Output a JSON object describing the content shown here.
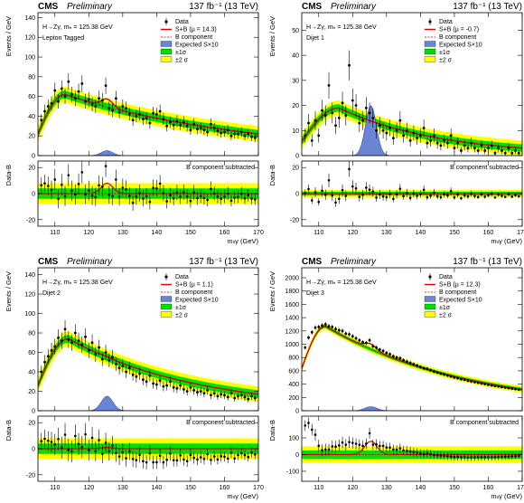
{
  "chart_data": [
    {
      "type": "scatter",
      "panel": "Lepton Tagged",
      "header": {
        "experiment": "CMS",
        "status": "Preliminary",
        "lumi": "137 fb⁻¹ (13 TeV)"
      },
      "process": "H→Zγ, mₕ = 125.38 GeV",
      "category": "Lepton Tagged",
      "ylabel": "Events / GeV",
      "ratio_ylabel": "Data-B",
      "xlabel": "mₗₗγ (GeV)",
      "ratio_note": "B component subtracted",
      "legend": [
        "Data",
        "S+B (μ = 14.3)",
        "B component",
        "Expected S×10",
        "±1σ",
        "±2 σ"
      ],
      "xlim": [
        105,
        170
      ],
      "ylim": [
        0,
        145
      ],
      "yticks": [
        0,
        20,
        40,
        60,
        80,
        100,
        120,
        140
      ],
      "ratio_ylim": [
        -25,
        25
      ],
      "ratio_yticks": [
        -20,
        0,
        20
      ],
      "bkg": {
        "peak_x": 113,
        "peak_y": 62,
        "end_y": 22,
        "rise": 0.35
      },
      "band1": 4,
      "band2": 8,
      "signal": {
        "mu": 125.38,
        "sigma": 1.7,
        "height": 5
      },
      "splusb_bump": 8,
      "ratio_bump": 8,
      "data": [
        [
          106,
          36
        ],
        [
          107,
          45
        ],
        [
          108,
          50
        ],
        [
          109,
          53
        ],
        [
          110,
          66
        ],
        [
          111,
          55
        ],
        [
          112,
          68
        ],
        [
          113,
          60
        ],
        [
          114,
          75
        ],
        [
          115,
          62
        ],
        [
          116,
          58
        ],
        [
          117,
          65
        ],
        [
          118,
          73
        ],
        [
          119,
          55
        ],
        [
          120,
          57
        ],
        [
          121,
          52
        ],
        [
          122,
          50
        ],
        [
          123,
          58
        ],
        [
          124,
          56
        ],
        [
          125,
          71
        ],
        [
          126,
          48
        ],
        [
          127,
          46
        ],
        [
          128,
          58
        ],
        [
          129,
          44
        ],
        [
          130,
          50
        ],
        [
          131,
          48
        ],
        [
          132,
          42
        ],
        [
          133,
          36
        ],
        [
          134,
          40
        ],
        [
          135,
          42
        ],
        [
          136,
          37
        ],
        [
          137,
          38
        ],
        [
          138,
          33
        ],
        [
          139,
          43
        ],
        [
          140,
          42
        ],
        [
          141,
          45
        ],
        [
          142,
          37
        ],
        [
          143,
          30
        ],
        [
          144,
          34
        ],
        [
          145,
          31
        ],
        [
          146,
          35
        ],
        [
          147,
          31
        ],
        [
          148,
          34
        ],
        [
          149,
          30
        ],
        [
          150,
          26
        ],
        [
          151,
          32
        ],
        [
          152,
          27
        ],
        [
          153,
          28
        ],
        [
          154,
          26
        ],
        [
          155,
          24
        ],
        [
          156,
          32
        ],
        [
          157,
          28
        ],
        [
          158,
          25
        ],
        [
          159,
          23
        ],
        [
          160,
          24
        ],
        [
          161,
          26
        ],
        [
          162,
          20
        ],
        [
          163,
          22
        ],
        [
          164,
          22
        ],
        [
          165,
          24
        ],
        [
          166,
          20
        ],
        [
          167,
          22
        ],
        [
          168,
          19
        ],
        [
          169,
          18
        ]
      ]
    },
    {
      "type": "scatter",
      "panel": "Dijet 1",
      "header": {
        "experiment": "CMS",
        "status": "Preliminary",
        "lumi": "137 fb⁻¹ (13 TeV)"
      },
      "process": "H→Zγ, mₕ = 125.38 GeV",
      "category": "Dijet 1",
      "ylabel": "Events / GeV",
      "ratio_ylabel": "Data-B",
      "xlabel": "mₗₗγ (GeV)",
      "ratio_note": "B component subtracted",
      "legend": [
        "Data",
        "S+B (μ = -0.7)",
        "B component",
        "Expected S×10",
        "±1σ",
        "±2 σ"
      ],
      "xlim": [
        105,
        170
      ],
      "ylim": [
        0,
        57
      ],
      "yticks": [
        0,
        10,
        20,
        30,
        40,
        50
      ],
      "ratio_ylim": [
        -25,
        25
      ],
      "ratio_yticks": [
        -20,
        0,
        20
      ],
      "bkg": {
        "peak_x": 116,
        "peak_y": 19,
        "end_y": 3,
        "rise": 0.3
      },
      "band1": 1.5,
      "band2": 3,
      "signal": {
        "mu": 125.38,
        "sigma": 1.6,
        "height": 20
      },
      "splusb_bump": 0,
      "ratio_bump": 0,
      "data": [
        [
          106,
          8
        ],
        [
          107,
          13
        ],
        [
          108,
          6
        ],
        [
          109,
          14
        ],
        [
          110,
          8
        ],
        [
          111,
          18
        ],
        [
          112,
          16
        ],
        [
          113,
          28
        ],
        [
          114,
          17
        ],
        [
          115,
          12
        ],
        [
          116,
          15
        ],
        [
          117,
          21
        ],
        [
          118,
          16
        ],
        [
          119,
          36
        ],
        [
          120,
          22
        ],
        [
          121,
          20
        ],
        [
          122,
          13
        ],
        [
          123,
          14
        ],
        [
          124,
          19
        ],
        [
          125,
          17
        ],
        [
          126,
          15
        ],
        [
          127,
          10
        ],
        [
          128,
          12
        ],
        [
          129,
          10
        ],
        [
          130,
          9
        ],
        [
          131,
          11
        ],
        [
          132,
          7
        ],
        [
          133,
          10
        ],
        [
          134,
          14
        ],
        [
          135,
          8
        ],
        [
          136,
          10
        ],
        [
          137,
          6
        ],
        [
          138,
          9
        ],
        [
          139,
          7
        ],
        [
          140,
          8
        ],
        [
          141,
          11
        ],
        [
          142,
          5
        ],
        [
          143,
          6
        ],
        [
          144,
          8
        ],
        [
          145,
          5
        ],
        [
          146,
          4
        ],
        [
          147,
          6
        ],
        [
          148,
          5
        ],
        [
          149,
          8
        ],
        [
          150,
          3
        ],
        [
          151,
          5
        ],
        [
          152,
          2
        ],
        [
          153,
          4
        ],
        [
          154,
          3
        ],
        [
          155,
          5
        ],
        [
          156,
          3
        ],
        [
          157,
          2
        ],
        [
          158,
          4
        ],
        [
          159,
          2
        ],
        [
          160,
          3
        ],
        [
          161,
          4
        ],
        [
          162,
          1
        ],
        [
          163,
          3
        ],
        [
          164,
          2
        ],
        [
          165,
          1
        ],
        [
          166,
          3
        ],
        [
          167,
          1
        ],
        [
          168,
          2
        ],
        [
          169,
          1
        ]
      ]
    },
    {
      "type": "scatter",
      "panel": "Dijet 2",
      "header": {
        "experiment": "CMS",
        "status": "Preliminary",
        "lumi": "137 fb⁻¹ (13 TeV)"
      },
      "process": "H→Zγ, mₕ = 125.38 GeV",
      "category": "Dijet 2",
      "ylabel": "Events / GeV",
      "ratio_ylabel": "Data-B",
      "xlabel": "mₗₗγ (GeV)",
      "ratio_note": "B component subtracted",
      "legend": [
        "Data",
        "S+B (μ = 1.1)",
        "B component",
        "Expected S×10",
        "±1σ",
        "±2 σ"
      ],
      "xlim": [
        105,
        170
      ],
      "ylim": [
        0,
        147
      ],
      "yticks": [
        0,
        20,
        40,
        60,
        80,
        100,
        120,
        140
      ],
      "ratio_ylim": [
        -25,
        25
      ],
      "ratio_yticks": [
        -20,
        0,
        20
      ],
      "bkg": {
        "peak_x": 114,
        "peak_y": 74,
        "end_y": 17,
        "rise": 0.35
      },
      "band1": 4,
      "band2": 8,
      "signal": {
        "mu": 125.38,
        "sigma": 1.7,
        "height": 15
      },
      "splusb_bump": 1,
      "ratio_bump": 1,
      "data": [
        [
          106,
          40
        ],
        [
          107,
          50
        ],
        [
          108,
          56
        ],
        [
          109,
          62
        ],
        [
          110,
          66
        ],
        [
          111,
          75
        ],
        [
          112,
          72
        ],
        [
          113,
          84
        ],
        [
          114,
          73
        ],
        [
          115,
          70
        ],
        [
          116,
          80
        ],
        [
          117,
          72
        ],
        [
          118,
          68
        ],
        [
          119,
          76
        ],
        [
          120,
          62
        ],
        [
          121,
          70
        ],
        [
          122,
          58
        ],
        [
          123,
          65
        ],
        [
          124,
          53
        ],
        [
          125,
          60
        ],
        [
          126,
          52
        ],
        [
          127,
          55
        ],
        [
          128,
          48
        ],
        [
          129,
          44
        ],
        [
          130,
          46
        ],
        [
          131,
          40
        ],
        [
          132,
          44
        ],
        [
          133,
          37
        ],
        [
          134,
          35
        ],
        [
          135,
          38
        ],
        [
          136,
          32
        ],
        [
          137,
          30
        ],
        [
          138,
          36
        ],
        [
          139,
          28
        ],
        [
          140,
          27
        ],
        [
          141,
          31
        ],
        [
          142,
          25
        ],
        [
          143,
          26
        ],
        [
          144,
          30
        ],
        [
          145,
          24
        ],
        [
          146,
          23
        ],
        [
          147,
          26
        ],
        [
          148,
          22
        ],
        [
          149,
          20
        ],
        [
          150,
          24
        ],
        [
          151,
          21
        ],
        [
          152,
          19
        ],
        [
          153,
          20
        ],
        [
          154,
          18
        ],
        [
          155,
          21
        ],
        [
          156,
          16
        ],
        [
          157,
          18
        ],
        [
          158,
          15
        ],
        [
          159,
          17
        ],
        [
          160,
          16
        ],
        [
          161,
          14
        ],
        [
          162,
          18
        ],
        [
          163,
          13
        ],
        [
          164,
          15
        ],
        [
          165,
          16
        ],
        [
          166,
          14
        ],
        [
          167,
          12
        ],
        [
          168,
          15
        ],
        [
          169,
          13
        ]
      ]
    },
    {
      "type": "scatter",
      "panel": "Dijet 3",
      "header": {
        "experiment": "CMS",
        "status": "Preliminary",
        "lumi": "137 fb⁻¹ (13 TeV)"
      },
      "process": "H→Zγ, mₕ = 125.38 GeV",
      "category": "Dijet 3",
      "ylabel": "Events / GeV",
      "ratio_ylabel": "Data-B",
      "xlabel": "mₗₗγ (GeV)",
      "ratio_note": "B component subtracted",
      "legend": [
        "Data",
        "S+B (μ = 12.3)",
        "B component",
        "Expected S×10",
        "±1σ",
        "±2 σ"
      ],
      "xlim": [
        105,
        170
      ],
      "ylim": [
        0,
        2150
      ],
      "yticks": [
        0,
        200,
        400,
        600,
        800,
        1000,
        1200,
        1400,
        1600,
        1800,
        2000
      ],
      "ratio_ylim": [
        -160,
        230
      ],
      "ratio_yticks": [
        -100,
        0,
        100
      ],
      "bkg": {
        "peak_x": 112,
        "peak_y": 1270,
        "end_y": 320,
        "rise": 0.5
      },
      "band1": 25,
      "band2": 50,
      "signal": {
        "mu": 125.38,
        "sigma": 1.8,
        "height": 60
      },
      "splusb_bump": 80,
      "ratio_bump": 80,
      "data": [
        [
          106,
          950
        ],
        [
          107,
          1100
        ],
        [
          108,
          1180
        ],
        [
          109,
          1250
        ],
        [
          110,
          1260
        ],
        [
          111,
          1280
        ],
        [
          112,
          1300
        ],
        [
          113,
          1270
        ],
        [
          114,
          1260
        ],
        [
          115,
          1230
        ],
        [
          116,
          1210
        ],
        [
          117,
          1200
        ],
        [
          118,
          1160
        ],
        [
          119,
          1150
        ],
        [
          120,
          1120
        ],
        [
          121,
          1090
        ],
        [
          122,
          1060
        ],
        [
          123,
          1030
        ],
        [
          124,
          1020
        ],
        [
          125,
          1060
        ],
        [
          126,
          970
        ],
        [
          127,
          950
        ],
        [
          128,
          920
        ],
        [
          129,
          900
        ],
        [
          130,
          870
        ],
        [
          131,
          850
        ],
        [
          132,
          820
        ],
        [
          133,
          800
        ],
        [
          134,
          790
        ],
        [
          135,
          760
        ],
        [
          136,
          740
        ],
        [
          137,
          720
        ],
        [
          138,
          700
        ],
        [
          139,
          680
        ],
        [
          140,
          660
        ],
        [
          141,
          640
        ],
        [
          142,
          630
        ],
        [
          143,
          610
        ],
        [
          144,
          590
        ],
        [
          145,
          575
        ],
        [
          146,
          560
        ],
        [
          147,
          545
        ],
        [
          148,
          530
        ],
        [
          149,
          515
        ],
        [
          150,
          500
        ],
        [
          151,
          490
        ],
        [
          152,
          475
        ],
        [
          153,
          465
        ],
        [
          154,
          450
        ],
        [
          155,
          440
        ],
        [
          156,
          430
        ],
        [
          157,
          420
        ],
        [
          158,
          410
        ],
        [
          159,
          400
        ],
        [
          160,
          390
        ],
        [
          161,
          380
        ],
        [
          162,
          372
        ],
        [
          163,
          364
        ],
        [
          164,
          356
        ],
        [
          165,
          348
        ],
        [
          166,
          340
        ],
        [
          167,
          333
        ],
        [
          168,
          326
        ],
        [
          169,
          320
        ]
      ]
    }
  ]
}
